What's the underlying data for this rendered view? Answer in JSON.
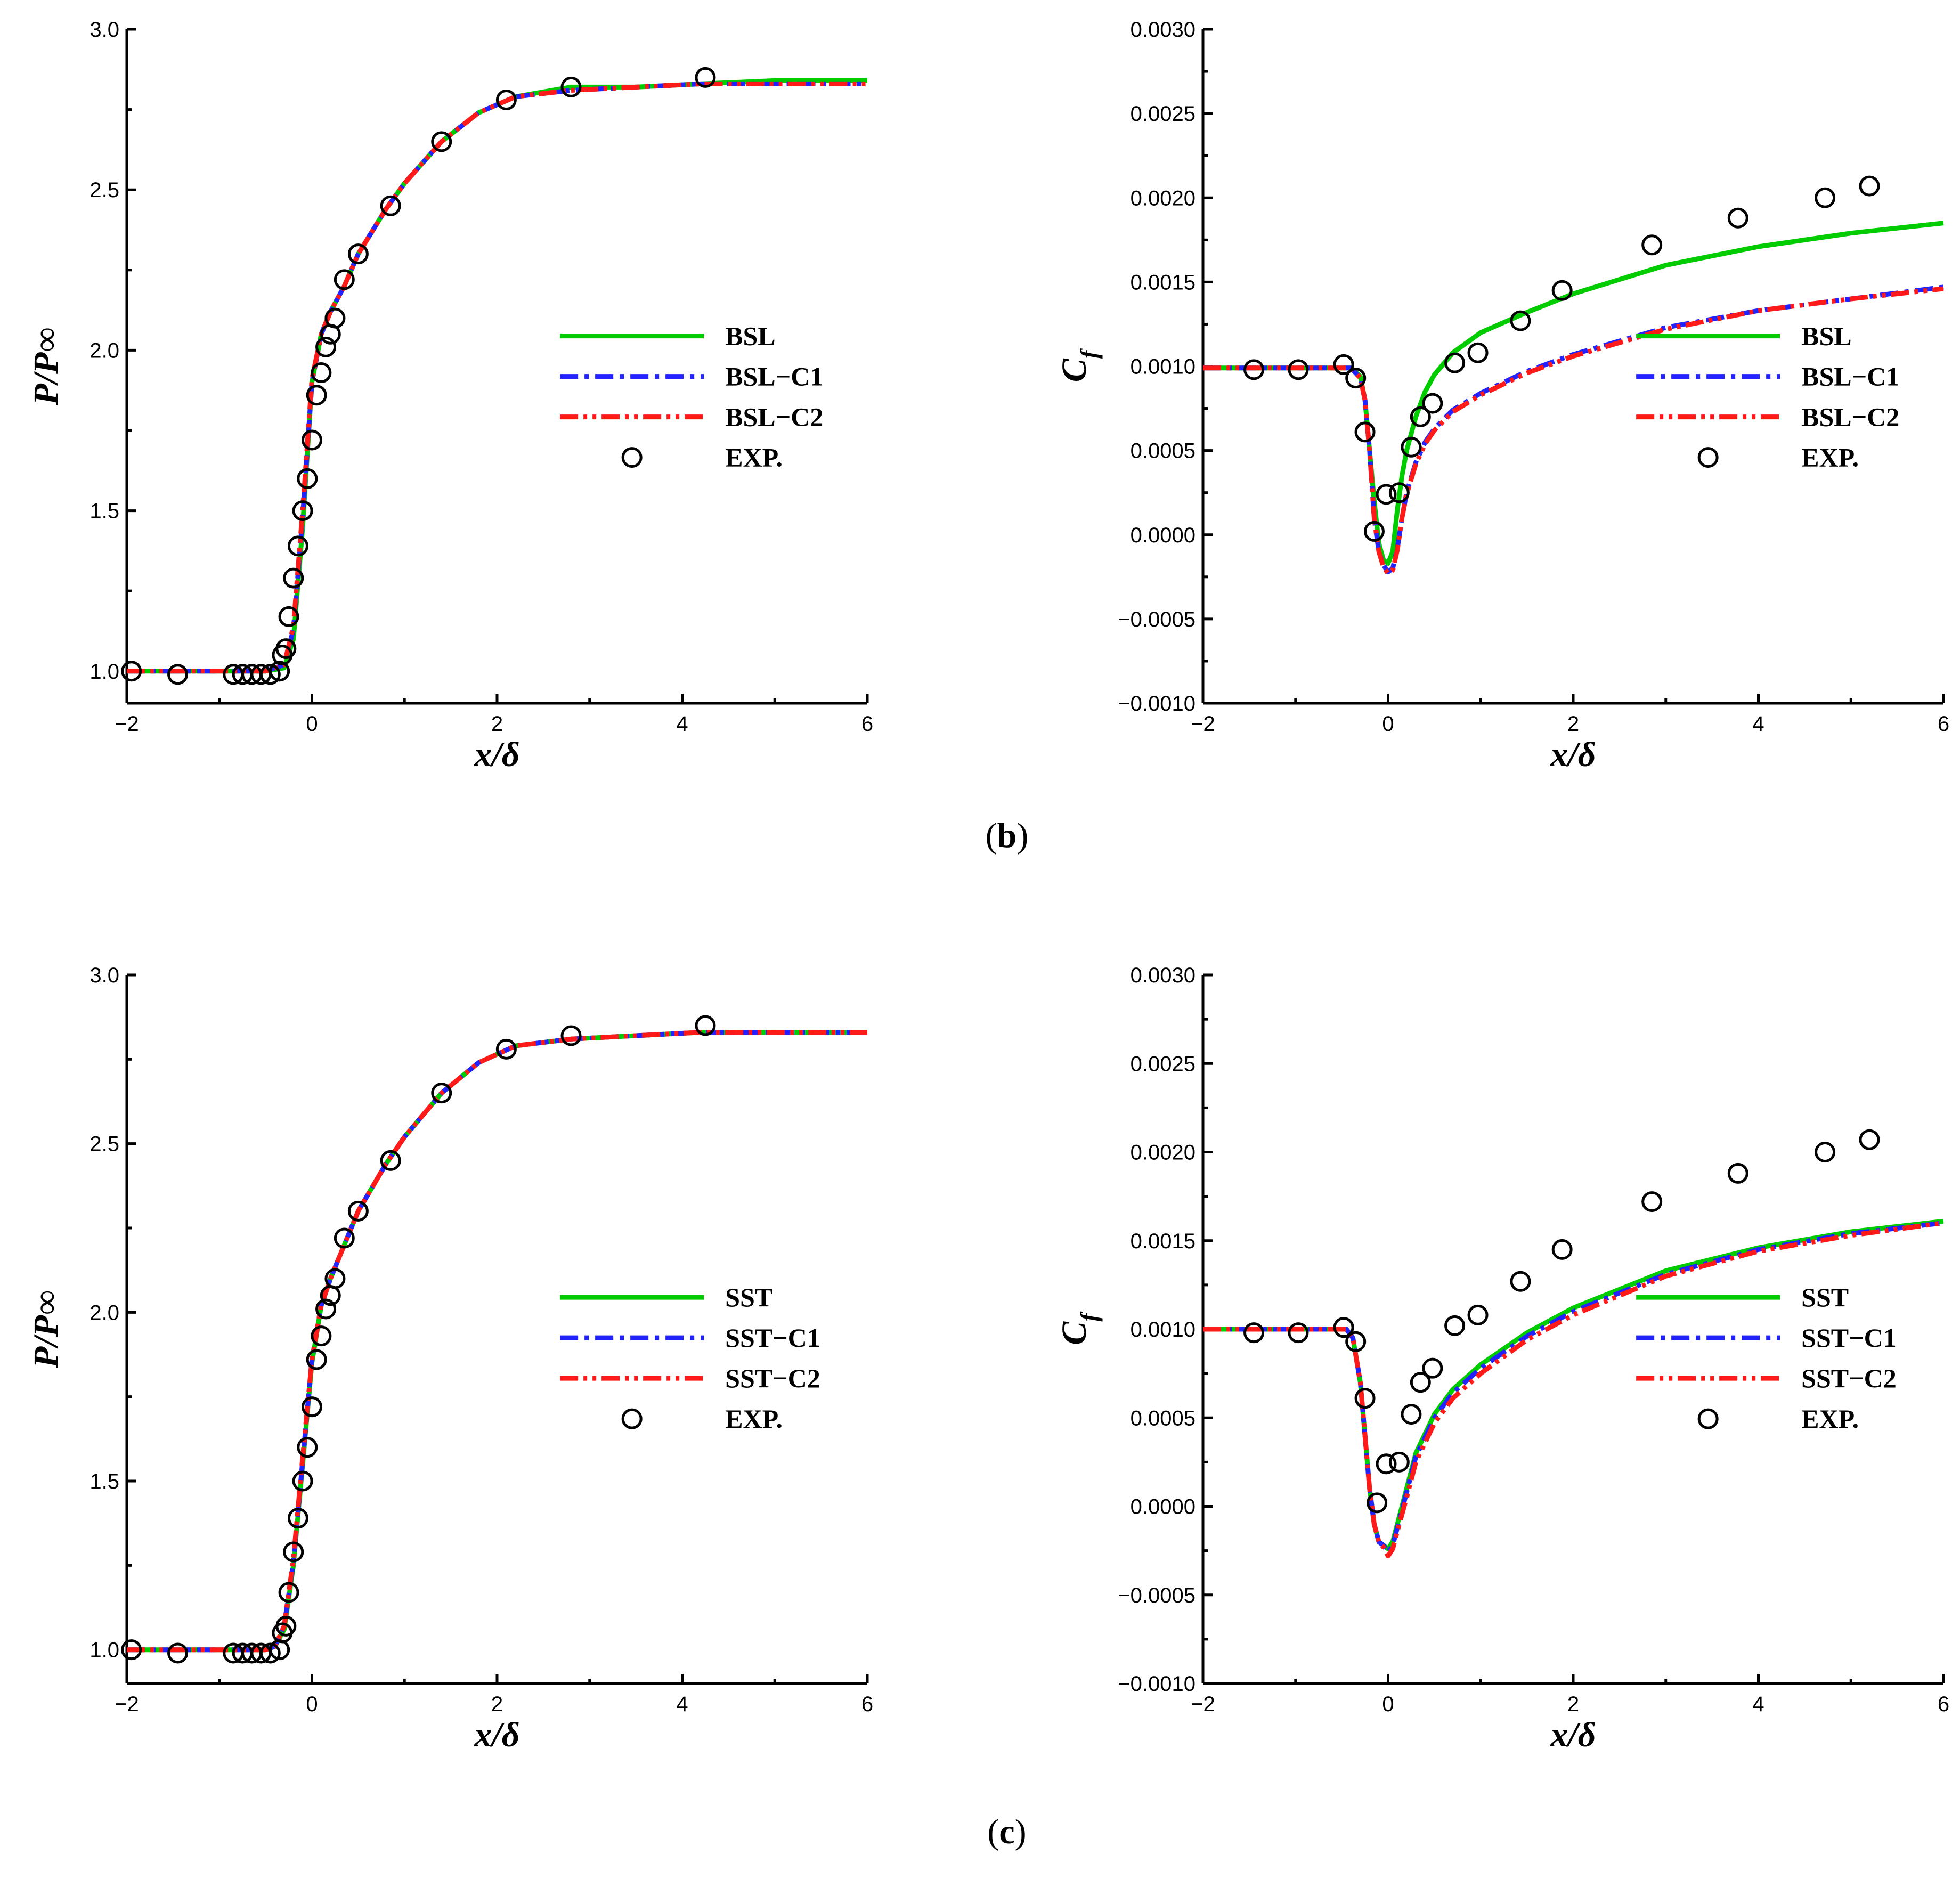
{
  "colors": {
    "green": "#00cc00",
    "blue": "#2222ff",
    "red": "#ff1a1a",
    "black": "#000000"
  },
  "captions": {
    "b": "b",
    "c": "c"
  },
  "chart_data": [
    {
      "id": "b-pressure",
      "type": "line",
      "ylabel": "P/P∞",
      "xlabel": "x/δ",
      "xlim": [
        -2,
        6
      ],
      "ylim": [
        0.9,
        3.0
      ],
      "xticks": [
        -2,
        0,
        2,
        4,
        6
      ],
      "xtick_labels": [
        "−2",
        "0",
        "2",
        "4",
        "6"
      ],
      "yticks": [
        1.0,
        1.5,
        2.0,
        2.5,
        3.0
      ],
      "ytick_labels": [
        "1.0",
        "1.5",
        "2.0",
        "2.5",
        "3.0"
      ],
      "legend_position": "center-right",
      "series": [
        {
          "name": "BSL",
          "style": "solid",
          "color": "#00cc00",
          "x": [
            -2,
            -0.5,
            -0.3,
            -0.2,
            -0.1,
            0.0,
            0.1,
            0.2,
            0.35,
            0.5,
            0.8,
            1.0,
            1.4,
            1.8,
            2.2,
            2.8,
            3.5,
            4.2,
            5.0,
            6.0
          ],
          "y": [
            1.0,
            1.0,
            1.01,
            1.1,
            1.45,
            1.9,
            2.05,
            2.12,
            2.2,
            2.3,
            2.44,
            2.52,
            2.65,
            2.74,
            2.79,
            2.82,
            2.82,
            2.83,
            2.84,
            2.84
          ]
        },
        {
          "name": "BSL−C1",
          "style": "dashdot",
          "color": "#2222ff",
          "x": [
            -2,
            -0.5,
            -0.3,
            -0.2,
            -0.1,
            0.0,
            0.1,
            0.2,
            0.35,
            0.5,
            0.8,
            1.0,
            1.4,
            1.8,
            2.2,
            2.8,
            3.5,
            4.2,
            5.0,
            6.0
          ],
          "y": [
            1.0,
            1.0,
            1.02,
            1.13,
            1.48,
            1.9,
            2.05,
            2.12,
            2.2,
            2.3,
            2.44,
            2.52,
            2.65,
            2.74,
            2.79,
            2.81,
            2.82,
            2.83,
            2.83,
            2.83
          ]
        },
        {
          "name": "BSL−C2",
          "style": "dashdotdot",
          "color": "#ff1a1a",
          "x": [
            -2,
            -0.5,
            -0.3,
            -0.2,
            -0.1,
            0.0,
            0.1,
            0.2,
            0.35,
            0.5,
            0.8,
            1.0,
            1.4,
            1.8,
            2.2,
            2.8,
            3.5,
            4.2,
            5.0,
            6.0
          ],
          "y": [
            1.0,
            1.0,
            1.02,
            1.14,
            1.5,
            1.91,
            2.05,
            2.12,
            2.2,
            2.3,
            2.44,
            2.52,
            2.65,
            2.74,
            2.79,
            2.81,
            2.82,
            2.83,
            2.83,
            2.83
          ]
        },
        {
          "name": "EXP.",
          "style": "marker",
          "x": [
            -1.95,
            -1.45,
            -0.85,
            -0.75,
            -0.65,
            -0.55,
            -0.45,
            -0.35,
            -0.32,
            -0.28,
            -0.25,
            -0.2,
            -0.15,
            -0.1,
            -0.05,
            0.0,
            0.05,
            0.1,
            0.15,
            0.2,
            0.25,
            0.35,
            0.5,
            0.85,
            1.4,
            2.1,
            2.8,
            4.25
          ],
          "y": [
            1.0,
            0.99,
            0.99,
            0.99,
            0.99,
            0.99,
            0.99,
            1.0,
            1.05,
            1.07,
            1.17,
            1.29,
            1.39,
            1.5,
            1.6,
            1.72,
            1.86,
            1.93,
            2.01,
            2.05,
            2.1,
            2.22,
            2.3,
            2.45,
            2.65,
            2.78,
            2.82,
            2.85
          ]
        }
      ]
    },
    {
      "id": "b-cf",
      "type": "line",
      "ylabel": "C",
      "ylabel_sub": "f",
      "xlabel": "x/δ",
      "xlim": [
        -2,
        6
      ],
      "ylim": [
        -0.001,
        0.003
      ],
      "xticks": [
        -2,
        0,
        2,
        4,
        6
      ],
      "xtick_labels": [
        "−2",
        "0",
        "2",
        "4",
        "6"
      ],
      "yticks": [
        -0.001,
        -0.0005,
        0.0,
        0.0005,
        0.001,
        0.0015,
        0.002,
        0.0025,
        0.003
      ],
      "ytick_labels": [
        "−0.0010",
        "−0.0005",
        "0.0000",
        "0.0005",
        "0.0010",
        "0.0015",
        "0.0020",
        "0.0025",
        "0.0030"
      ],
      "legend_position": "center-right",
      "series": [
        {
          "name": "BSL",
          "style": "solid",
          "color": "#00cc00",
          "x": [
            -2,
            -0.4,
            -0.3,
            -0.25,
            -0.2,
            -0.15,
            -0.1,
            -0.05,
            0.0,
            0.05,
            0.1,
            0.15,
            0.2,
            0.3,
            0.4,
            0.5,
            0.7,
            1.0,
            1.5,
            2.0,
            3.0,
            4.0,
            5.0,
            6.0
          ],
          "y": [
            0.00099,
            0.00099,
            0.00094,
            0.0008,
            0.0005,
            0.0002,
            -5e-05,
            -0.00015,
            -0.00017,
            -0.0001,
            0.00015,
            0.00035,
            0.0005,
            0.0007,
            0.00085,
            0.00095,
            0.00108,
            0.0012,
            0.00132,
            0.00143,
            0.0016,
            0.00171,
            0.00179,
            0.00185
          ]
        },
        {
          "name": "BSL−C1",
          "style": "dashdot",
          "color": "#2222ff",
          "x": [
            -2,
            -0.4,
            -0.3,
            -0.25,
            -0.2,
            -0.15,
            -0.1,
            -0.05,
            0.0,
            0.05,
            0.1,
            0.15,
            0.2,
            0.3,
            0.4,
            0.5,
            0.7,
            1.0,
            1.5,
            2.0,
            3.0,
            4.0,
            5.0,
            6.0
          ],
          "y": [
            0.00099,
            0.00099,
            0.00093,
            0.0008,
            0.0005,
            0.0001,
            -0.0001,
            -0.00018,
            -0.00022,
            -0.0002,
            -8e-05,
            0.0001,
            0.00025,
            0.00043,
            0.00055,
            0.00063,
            0.00074,
            0.00084,
            0.00097,
            0.00107,
            0.00123,
            0.00133,
            0.0014,
            0.00147
          ]
        },
        {
          "name": "BSL−C2",
          "style": "dashdotdot",
          "color": "#ff1a1a",
          "x": [
            -2,
            -0.4,
            -0.3,
            -0.25,
            -0.2,
            -0.15,
            -0.1,
            -0.05,
            0.0,
            0.05,
            0.1,
            0.15,
            0.2,
            0.3,
            0.4,
            0.5,
            0.7,
            1.0,
            1.5,
            2.0,
            3.0,
            4.0,
            5.0,
            6.0
          ],
          "y": [
            0.00099,
            0.00099,
            0.00093,
            0.0008,
            0.0005,
            0.0001,
            -0.0001,
            -0.00019,
            -0.00023,
            -0.00021,
            -9e-05,
            0.0001,
            0.00024,
            0.00042,
            0.00054,
            0.00062,
            0.00073,
            0.00083,
            0.00096,
            0.00106,
            0.00122,
            0.00133,
            0.0014,
            0.00146
          ]
        },
        {
          "name": "EXP.",
          "style": "marker",
          "x": [
            -1.45,
            -0.97,
            -0.48,
            -0.35,
            -0.25,
            -0.15,
            -0.02,
            0.12,
            0.25,
            0.35,
            0.48,
            0.72,
            0.97,
            1.43,
            1.88,
            2.85,
            3.78,
            4.72,
            5.2
          ],
          "y": [
            0.00098,
            0.00098,
            0.00101,
            0.00093,
            0.00061,
            2e-05,
            0.00024,
            0.00025,
            0.00052,
            0.0007,
            0.00078,
            0.00102,
            0.00108,
            0.00127,
            0.00145,
            0.00172,
            0.00188,
            0.002,
            0.00207
          ]
        }
      ]
    },
    {
      "id": "c-pressure",
      "type": "line",
      "ylabel": "P/P∞",
      "xlabel": "x/δ",
      "xlim": [
        -2,
        6
      ],
      "ylim": [
        0.9,
        3.0
      ],
      "xticks": [
        -2,
        0,
        2,
        4,
        6
      ],
      "xtick_labels": [
        "−2",
        "0",
        "2",
        "4",
        "6"
      ],
      "yticks": [
        1.0,
        1.5,
        2.0,
        2.5,
        3.0
      ],
      "ytick_labels": [
        "1.0",
        "1.5",
        "2.0",
        "2.5",
        "3.0"
      ],
      "legend_position": "center-right",
      "series": [
        {
          "name": "SST",
          "style": "solid",
          "color": "#00cc00",
          "x": [
            -2,
            -0.5,
            -0.4,
            -0.3,
            -0.2,
            -0.1,
            0.0,
            0.1,
            0.2,
            0.35,
            0.5,
            0.8,
            1.0,
            1.4,
            1.8,
            2.2,
            2.8,
            3.5,
            4.2,
            5.0,
            6.0
          ],
          "y": [
            1.0,
            1.0,
            1.01,
            1.06,
            1.25,
            1.55,
            1.85,
            2.02,
            2.1,
            2.2,
            2.3,
            2.44,
            2.52,
            2.65,
            2.74,
            2.79,
            2.81,
            2.82,
            2.83,
            2.83,
            2.83
          ]
        },
        {
          "name": "SST−C1",
          "style": "dashdot",
          "color": "#2222ff",
          "x": [
            -2,
            -0.5,
            -0.4,
            -0.3,
            -0.2,
            -0.1,
            0.0,
            0.1,
            0.2,
            0.35,
            0.5,
            0.8,
            1.0,
            1.4,
            1.8,
            2.2,
            2.8,
            3.5,
            4.2,
            5.0,
            6.0
          ],
          "y": [
            1.0,
            1.0,
            1.01,
            1.07,
            1.26,
            1.56,
            1.86,
            2.02,
            2.1,
            2.2,
            2.3,
            2.44,
            2.52,
            2.65,
            2.74,
            2.79,
            2.81,
            2.82,
            2.83,
            2.83,
            2.83
          ]
        },
        {
          "name": "SST−C2",
          "style": "dashdotdot",
          "color": "#ff1a1a",
          "x": [
            -2,
            -0.5,
            -0.4,
            -0.3,
            -0.2,
            -0.1,
            0.0,
            0.1,
            0.2,
            0.35,
            0.5,
            0.8,
            1.0,
            1.4,
            1.8,
            2.2,
            2.8,
            3.5,
            4.2,
            5.0,
            6.0
          ],
          "y": [
            1.0,
            1.0,
            1.01,
            1.07,
            1.27,
            1.57,
            1.86,
            2.02,
            2.1,
            2.2,
            2.3,
            2.44,
            2.52,
            2.65,
            2.74,
            2.79,
            2.81,
            2.82,
            2.83,
            2.83,
            2.83
          ]
        },
        {
          "name": "EXP.",
          "style": "marker",
          "x": [
            -1.95,
            -1.45,
            -0.85,
            -0.75,
            -0.65,
            -0.55,
            -0.45,
            -0.35,
            -0.32,
            -0.28,
            -0.25,
            -0.2,
            -0.15,
            -0.1,
            -0.05,
            0.0,
            0.05,
            0.1,
            0.15,
            0.2,
            0.25,
            0.35,
            0.5,
            0.85,
            1.4,
            2.1,
            2.8,
            4.25
          ],
          "y": [
            1.0,
            0.99,
            0.99,
            0.99,
            0.99,
            0.99,
            0.99,
            1.0,
            1.05,
            1.07,
            1.17,
            1.29,
            1.39,
            1.5,
            1.6,
            1.72,
            1.86,
            1.93,
            2.01,
            2.05,
            2.1,
            2.22,
            2.3,
            2.45,
            2.65,
            2.78,
            2.82,
            2.85
          ]
        }
      ]
    },
    {
      "id": "c-cf",
      "type": "line",
      "ylabel": "C",
      "ylabel_sub": "f",
      "xlabel": "x/δ",
      "xlim": [
        -2,
        6
      ],
      "ylim": [
        -0.001,
        0.003
      ],
      "xticks": [
        -2,
        0,
        2,
        4,
        6
      ],
      "xtick_labels": [
        "−2",
        "0",
        "2",
        "4",
        "6"
      ],
      "yticks": [
        -0.001,
        -0.0005,
        0.0,
        0.0005,
        0.001,
        0.0015,
        0.002,
        0.0025,
        0.003
      ],
      "ytick_labels": [
        "−0.0010",
        "−0.0005",
        "0.0000",
        "0.0005",
        "0.0010",
        "0.0015",
        "0.0020",
        "0.0025",
        "0.0030"
      ],
      "legend_position": "center-right",
      "series": [
        {
          "name": "SST",
          "style": "solid",
          "color": "#00cc00",
          "x": [
            -2,
            -0.45,
            -0.38,
            -0.3,
            -0.25,
            -0.2,
            -0.15,
            -0.1,
            -0.05,
            0.0,
            0.05,
            0.1,
            0.2,
            0.3,
            0.5,
            0.7,
            1.0,
            1.5,
            2.0,
            3.0,
            4.0,
            5.0,
            6.0
          ],
          "y": [
            0.001,
            0.001,
            0.00095,
            0.0007,
            0.0004,
            0.0001,
            -0.0001,
            -0.0002,
            -0.00022,
            -0.00024,
            -0.0002,
            -0.0001,
            0.0001,
            0.0003,
            0.00052,
            0.00066,
            0.0008,
            0.00098,
            0.00112,
            0.00133,
            0.00146,
            0.00155,
            0.00161
          ]
        },
        {
          "name": "SST−C1",
          "style": "dashdot",
          "color": "#2222ff",
          "x": [
            -2,
            -0.45,
            -0.38,
            -0.3,
            -0.25,
            -0.2,
            -0.15,
            -0.1,
            -0.05,
            0.0,
            0.05,
            0.1,
            0.2,
            0.3,
            0.5,
            0.7,
            1.0,
            1.5,
            2.0,
            3.0,
            4.0,
            5.0,
            6.0
          ],
          "y": [
            0.001,
            0.001,
            0.00095,
            0.0007,
            0.0004,
            0.0001,
            -0.0001,
            -0.0002,
            -0.00022,
            -0.00026,
            -0.00022,
            -0.00012,
            8e-05,
            0.00028,
            0.0005,
            0.00064,
            0.00078,
            0.00096,
            0.0011,
            0.00131,
            0.00145,
            0.00154,
            0.0016
          ]
        },
        {
          "name": "SST−C2",
          "style": "dashdotdot",
          "color": "#ff1a1a",
          "x": [
            -2,
            -0.45,
            -0.38,
            -0.3,
            -0.25,
            -0.2,
            -0.15,
            -0.1,
            -0.05,
            0.0,
            0.05,
            0.1,
            0.2,
            0.3,
            0.5,
            0.7,
            1.0,
            1.5,
            2.0,
            3.0,
            4.0,
            5.0,
            6.0
          ],
          "y": [
            0.001,
            0.001,
            0.00095,
            0.0007,
            0.0004,
            0.0001,
            -0.0001,
            -0.0002,
            -0.00023,
            -0.00028,
            -0.00024,
            -0.00014,
            5e-05,
            0.00025,
            0.00047,
            0.00061,
            0.00075,
            0.00094,
            0.00108,
            0.0013,
            0.00144,
            0.00153,
            0.0016
          ]
        },
        {
          "name": "EXP.",
          "style": "marker",
          "x": [
            -1.45,
            -0.97,
            -0.48,
            -0.35,
            -0.25,
            -0.12,
            -0.02,
            0.12,
            0.25,
            0.35,
            0.48,
            0.72,
            0.97,
            1.43,
            1.88,
            2.85,
            3.78,
            4.72,
            5.2
          ],
          "y": [
            0.00098,
            0.00098,
            0.00101,
            0.00093,
            0.00061,
            2e-05,
            0.00024,
            0.00025,
            0.00052,
            0.0007,
            0.00078,
            0.00102,
            0.00108,
            0.00127,
            0.00145,
            0.00172,
            0.00188,
            0.002,
            0.00207
          ]
        }
      ]
    }
  ]
}
